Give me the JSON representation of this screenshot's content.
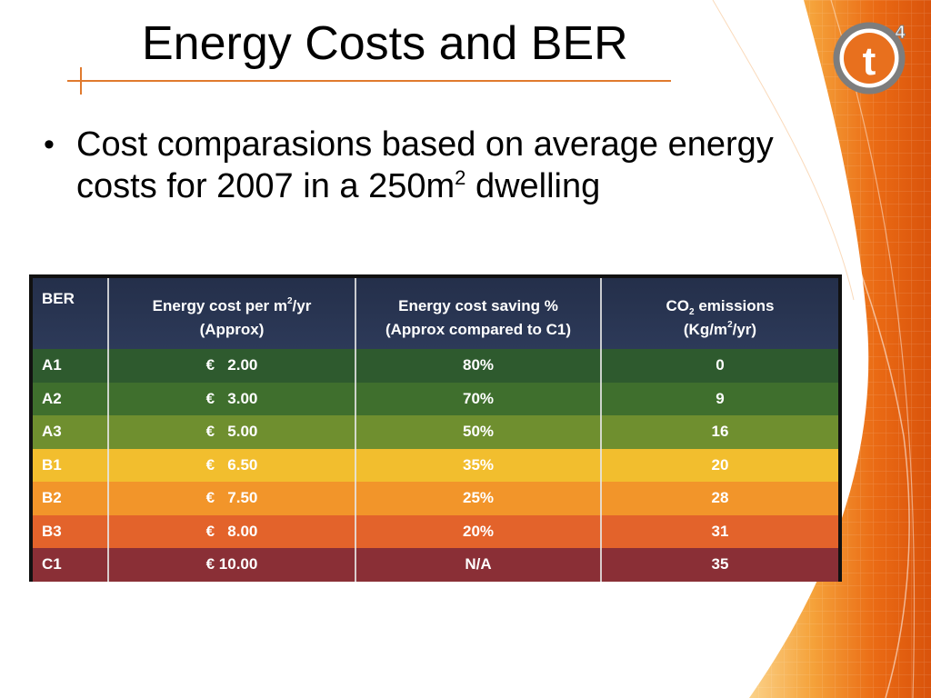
{
  "slide": {
    "title": "Energy Costs and BER",
    "bullet": {
      "text_before": "Cost comparasions based on average energy costs for 2007 in a 250m",
      "superscript": "2",
      "text_after": " dwelling"
    }
  },
  "logo": {
    "letter": "t",
    "superscript": "4",
    "icon": "t4-logo-icon"
  },
  "table": {
    "headers": {
      "ber": "BER",
      "cost_line1_a": "Energy cost per m",
      "cost_line1_sup": "2",
      "cost_line1_b": "/yr",
      "cost_line2": "(Approx)",
      "saving_line1": "Energy cost saving %",
      "saving_line2": "(Approx compared to C1)",
      "co2_line1_a": "CO",
      "co2_line1_sub": "2",
      "co2_line1_b": " emissions",
      "co2_line2_a": "(Kg/m",
      "co2_line2_sup": "2",
      "co2_line2_b": "/yr)"
    },
    "rows": [
      {
        "ber": "A1",
        "cost": "€   2.00",
        "saving": "80%",
        "co2": "0",
        "color": "#2e5a2e"
      },
      {
        "ber": "A2",
        "cost": "€   3.00",
        "saving": "70%",
        "co2": "9",
        "color": "#3f6f2d"
      },
      {
        "ber": "A3",
        "cost": "€   5.00",
        "saving": "50%",
        "co2": "16",
        "color": "#6f8f2f"
      },
      {
        "ber": "B1",
        "cost": "€   6.50",
        "saving": "35%",
        "co2": "20",
        "color": "#f2be2e"
      },
      {
        "ber": "B2",
        "cost": "€   7.50",
        "saving": "25%",
        "co2": "28",
        "color": "#f2952a"
      },
      {
        "ber": "B3",
        "cost": "€   8.00",
        "saving": "20%",
        "co2": "31",
        "color": "#e3632b"
      },
      {
        "ber": "C1",
        "cost": "€ 10.00",
        "saving": "N/A",
        "co2": "35",
        "color": "#8a2f36"
      }
    ]
  },
  "colors": {
    "accent_orange": "#e07a2e",
    "header_navy": "#2a3655"
  }
}
